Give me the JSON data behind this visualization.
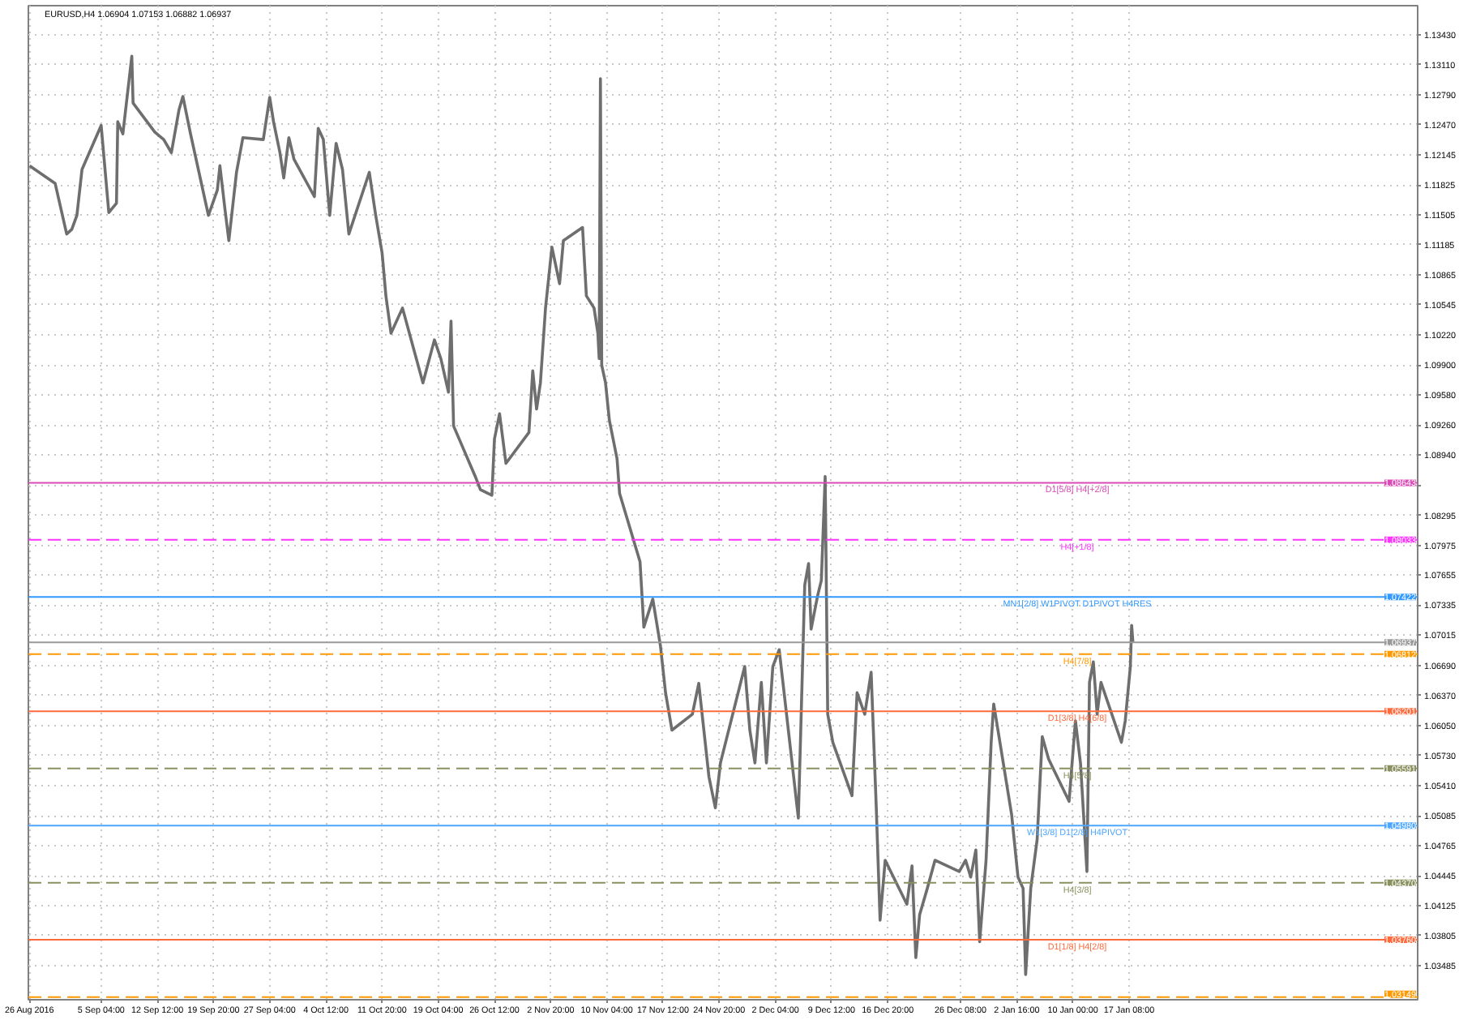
{
  "chart_data": {
    "type": "line",
    "title": "EURUSD,H4  1.06904 1.07153 1.06882 1.06937",
    "x": [
      "2016-08-26T20:00",
      "2016-08-30T04:00",
      "2016-08-31T16:00",
      "2016-09-01T08:00",
      "2016-09-02T00:00",
      "2016-09-02T16:00",
      "2016-09-05T04:00",
      "2016-09-06T04:00",
      "2016-09-07T04:00",
      "2016-09-07T08:00",
      "2016-09-08T00:00",
      "2016-09-09T04:00",
      "2016-09-09T08:00",
      "2016-09-12T04:00",
      "2016-09-13T08:00",
      "2016-09-14T08:00",
      "2016-09-15T08:00",
      "2016-09-15T20:00",
      "2016-09-16T20:00",
      "2016-09-19T04:00",
      "2016-09-20T08:00",
      "2016-09-20T16:00",
      "2016-09-21T08:00",
      "2016-09-21T20:00",
      "2016-09-22T20:00",
      "2016-09-23T16:00",
      "2016-09-26T08:00",
      "2016-09-27T04:00",
      "2016-09-27T16:00",
      "2016-09-28T12:00",
      "2016-09-29T00:00",
      "2016-09-29T16:00",
      "2016-09-30T08:00",
      "2016-10-03T00:00",
      "2016-10-03T12:00",
      "2016-10-04T04:00",
      "2016-10-05T00:00",
      "2016-10-05T20:00",
      "2016-10-06T16:00",
      "2016-10-07T12:00",
      "2016-10-10T04:00",
      "2016-10-11T00:00",
      "2016-10-11T20:00",
      "2016-10-12T08:00",
      "2016-10-13T00:00",
      "2016-10-14T12:00",
      "2016-10-17T04:00",
      "2016-10-18T16:00",
      "2016-10-19T12:00",
      "2016-10-20T12:00",
      "2016-10-20T20:00",
      "2016-10-21T04:00",
      "2016-10-24T00:00",
      "2016-10-24T16:00",
      "2016-10-26T04:00",
      "2016-10-26T12:00",
      "2016-10-27T04:00",
      "2016-10-28T00:00",
      "2016-10-31T00:00",
      "2016-10-31T12:00",
      "2016-11-01T00:00",
      "2016-11-01T12:00",
      "2016-11-02T04:00",
      "2016-11-03T00:00",
      "2016-11-04T00:00",
      "2016-11-04T12:00",
      "2016-11-07T00:00",
      "2016-11-07T12:00",
      "2016-11-08T12:00",
      "2016-11-09T00:00",
      "2016-11-09T04:00",
      "2016-11-09T08:00",
      "2016-11-09T12:00",
      "2016-11-10T00:00",
      "2016-11-10T12:00",
      "2016-11-11T12:00",
      "2016-11-11T20:00",
      "2016-11-14T12:00",
      "2016-11-15T00:00",
      "2016-11-16T04:00",
      "2016-11-17T04:00",
      "2016-11-17T20:00",
      "2016-11-18T16:00",
      "2016-11-21T08:00",
      "2016-11-22T04:00",
      "2016-11-23T12:00",
      "2016-11-24T08:00",
      "2016-11-25T00:00",
      "2016-11-28T04:00",
      "2016-11-28T20:00",
      "2016-11-29T12:00",
      "2016-11-30T08:00",
      "2016-12-01T00:00",
      "2016-12-01T20:00",
      "2016-12-02T16:00",
      "2016-12-05T04:00",
      "2016-12-06T00:00",
      "2016-12-06T12:00",
      "2016-12-06T20:00",
      "2016-12-07T16:00",
      "2016-12-08T04:00",
      "2016-12-08T16:00",
      "2016-12-09T00:00",
      "2016-12-09T16:00",
      "2016-12-12T04:00",
      "2016-12-12T20:00",
      "2016-12-13T20:00",
      "2016-12-14T16:00",
      "2016-12-15T08:00",
      "2016-12-15T20:00",
      "2016-12-16T12:00",
      "2016-12-19T08:00",
      "2016-12-20T00:00",
      "2016-12-20T12:00",
      "2016-12-21T00:00",
      "2016-12-22T00:00",
      "2016-12-23T00:00",
      "2016-12-26T04:00",
      "2016-12-27T00:00",
      "2016-12-27T16:00",
      "2016-12-28T08:00",
      "2016-12-28T20:00",
      "2016-12-29T16:00",
      "2016-12-30T08:00",
      "2016-12-30T16:00",
      "2017-01-02T00:00",
      "2017-01-02T20:00",
      "2017-01-03T12:00",
      "2017-01-03T20:00",
      "2017-01-04T12:00",
      "2017-01-05T08:00",
      "2017-01-06T00:00",
      "2017-01-06T20:00",
      "2017-01-09T12:00",
      "2017-01-10T08:00",
      "2017-01-11T00:00",
      "2017-01-11T20:00",
      "2017-01-12T04:00",
      "2017-01-12T16:00",
      "2017-01-13T04:00",
      "2017-01-13T16:00",
      "2017-01-16T08:00",
      "2017-01-16T20:00",
      "2017-01-17T12:00",
      "2017-01-17T16:00",
      "2017-01-17T20:00"
    ],
    "series": [
      {
        "color": "#6e6e6e",
        "values": [
          1.1203,
          1.1184,
          1.113,
          1.1135,
          1.115,
          1.1199,
          1.1246,
          1.1153,
          1.1163,
          1.125,
          1.1237,
          1.132,
          1.127,
          1.1239,
          1.1231,
          1.1217,
          1.1263,
          1.1277,
          1.1237,
          1.115,
          1.1177,
          1.1203,
          1.1156,
          1.1123,
          1.1196,
          1.1233,
          1.1231,
          1.1276,
          1.125,
          1.1217,
          1.119,
          1.1233,
          1.121,
          1.117,
          1.1243,
          1.1231,
          1.115,
          1.1227,
          1.1199,
          1.113,
          1.1196,
          1.115,
          1.111,
          1.1064,
          1.1024,
          1.1051,
          1.0971,
          1.1017,
          1.0997,
          1.0961,
          1.1037,
          1.0925,
          1.0871,
          1.0857,
          1.0851,
          1.0911,
          1.0938,
          1.0885,
          1.0918,
          1.0984,
          1.0943,
          1.0971,
          1.1051,
          1.1116,
          1.1077,
          1.1123,
          1.1137,
          1.1064,
          1.1051,
          1.1024,
          1.0997,
          1.1296,
          1.099,
          1.0971,
          1.0931,
          1.089,
          1.0853,
          1.078,
          1.071,
          1.074,
          1.069,
          1.064,
          1.06,
          1.0617,
          1.065,
          1.055,
          1.0517,
          1.0565,
          1.0668,
          1.06,
          1.0565,
          1.0651,
          1.0565,
          1.0668,
          1.0686,
          1.0506,
          1.0755,
          1.0778,
          1.0708,
          1.0743,
          1.076,
          1.0871,
          1.0617,
          1.0587,
          1.053,
          1.064,
          1.0617,
          1.0662,
          1.0518,
          1.0397,
          1.0461,
          1.0414,
          1.0455,
          1.0357,
          1.0403,
          1.0431,
          1.0461,
          1.0449,
          1.0461,
          1.0443,
          1.0472,
          1.0374,
          1.0461,
          1.0587,
          1.0628,
          1.051,
          1.0443,
          1.0431,
          1.0339,
          1.0431,
          1.0483,
          1.0593,
          1.0569,
          1.0524,
          1.061,
          1.0564,
          1.0449,
          1.0651,
          1.0673,
          1.0617,
          1.0651,
          1.0587,
          1.061,
          1.0668,
          1.0712,
          1.0694
        ]
      }
    ],
    "xlim": [
      "2016-08-26T16:00",
      "2017-02-24T00:00"
    ],
    "xticks": [
      {
        "value": "2016-08-26T20:00",
        "label": "26 Aug 2016"
      },
      {
        "value": "2016-09-05T04:00",
        "label": "5 Sep 04:00"
      },
      {
        "value": "2016-09-12T12:00",
        "label": "12 Sep 12:00"
      },
      {
        "value": "2016-09-19T20:00",
        "label": "19 Sep 20:00"
      },
      {
        "value": "2016-09-27T04:00",
        "label": "27 Sep 04:00"
      },
      {
        "value": "2016-10-04T12:00",
        "label": "4 Oct 12:00"
      },
      {
        "value": "2016-10-11T20:00",
        "label": "11 Oct 20:00"
      },
      {
        "value": "2016-10-19T04:00",
        "label": "19 Oct 04:00"
      },
      {
        "value": "2016-10-26T12:00",
        "label": "26 Oct 12:00"
      },
      {
        "value": "2016-11-02T20:00",
        "label": "2 Nov 20:00"
      },
      {
        "value": "2016-11-10T04:00",
        "label": "10 Nov 04:00"
      },
      {
        "value": "2016-11-17T12:00",
        "label": "17 Nov 12:00"
      },
      {
        "value": "2016-11-24T20:00",
        "label": "24 Nov 20:00"
      },
      {
        "value": "2016-12-02T04:00",
        "label": "2 Dec 04:00"
      },
      {
        "value": "2016-12-09T12:00",
        "label": "9 Dec 12:00"
      },
      {
        "value": "2016-12-16T20:00",
        "label": "16 Dec 20:00"
      },
      {
        "value": "2016-12-26T08:00",
        "label": "26 Dec 08:00"
      },
      {
        "value": "2017-01-02T16:00",
        "label": "2 Jan 16:00"
      },
      {
        "value": "2017-01-10T00:00",
        "label": "10 Jan 00:00"
      },
      {
        "value": "2017-01-17T08:00",
        "label": "17 Jan 08:00"
      }
    ],
    "ylim": [
      1.0312,
      1.1374
    ],
    "yticks": [
      {
        "value": 1.1343,
        "label": "1.13430"
      },
      {
        "value": 1.1311,
        "label": "1.13110"
      },
      {
        "value": 1.1279,
        "label": "1.12790"
      },
      {
        "value": 1.1247,
        "label": "1.12470"
      },
      {
        "value": 1.12145,
        "label": "1.12145"
      },
      {
        "value": 1.11825,
        "label": "1.11825"
      },
      {
        "value": 1.11505,
        "label": "1.11505"
      },
      {
        "value": 1.11185,
        "label": "1.11185"
      },
      {
        "value": 1.10865,
        "label": "1.10865"
      },
      {
        "value": 1.10545,
        "label": "1.10545"
      },
      {
        "value": 1.1022,
        "label": "1.10220"
      },
      {
        "value": 1.099,
        "label": "1.09900"
      },
      {
        "value": 1.0958,
        "label": "1.09580"
      },
      {
        "value": 1.0926,
        "label": "1.09260"
      },
      {
        "value": 1.0894,
        "label": "1.08940"
      },
      {
        "value": 1.08615,
        "label": null
      },
      {
        "value": 1.08295,
        "label": "1.08295"
      },
      {
        "value": 1.07975,
        "label": "1.07975"
      },
      {
        "value": 1.07655,
        "label": "1.07655"
      },
      {
        "value": 1.07335,
        "label": "1.07335"
      },
      {
        "value": 1.07015,
        "label": "1.07015"
      },
      {
        "value": 1.0669,
        "label": "1.06690"
      },
      {
        "value": 1.0637,
        "label": "1.06370"
      },
      {
        "value": 1.0605,
        "label": "1.06050"
      },
      {
        "value": 1.0573,
        "label": "1.05730"
      },
      {
        "value": 1.0541,
        "label": "1.05410"
      },
      {
        "value": 1.05085,
        "label": "1.05085"
      },
      {
        "value": 1.04765,
        "label": "1.04765"
      },
      {
        "value": 1.04445,
        "label": "1.04445"
      },
      {
        "value": 1.04125,
        "label": "1.04125"
      },
      {
        "value": 1.03805,
        "label": "1.03805"
      },
      {
        "value": 1.03485,
        "label": "1.03485"
      }
    ],
    "ref_lines": [
      {
        "axis": "y",
        "value": 1.08643,
        "label": "D1[5/8] H4[+2/8]",
        "color": "#d94bb5",
        "line_style": "solid"
      },
      {
        "axis": "y",
        "value": 1.08033,
        "label": "H4[+1/8]",
        "color": "#ff33ff",
        "line_style": "dashed"
      },
      {
        "axis": "y",
        "value": 1.07422,
        "label": "MN1[2/8] W1PIVOT D1PIVOT H4RES",
        "color": "#3399ff",
        "line_style": "solid"
      },
      {
        "axis": "y",
        "value": 1.06937,
        "color": "#9a9a9a",
        "line_style": "solid"
      },
      {
        "axis": "y",
        "value": 1.06812,
        "label": "H4[7/8]",
        "color": "#ff9900",
        "line_style": "dashed"
      },
      {
        "axis": "y",
        "value": 1.06201,
        "label": "D1[3/8] H4[6/8]",
        "color": "#ff6a3d",
        "line_style": "solid"
      },
      {
        "axis": "y",
        "value": 1.05591,
        "label": "H4[5/8]",
        "color": "#8a9060",
        "line_style": "dashed"
      },
      {
        "axis": "y",
        "value": 1.0498,
        "label": "W1[3/8] D1[2/8] H4PIVOT",
        "color": "#4da6ff",
        "line_style": "solid"
      },
      {
        "axis": "y",
        "value": 1.0437,
        "label": "H4[3/8]",
        "color": "#8a9060",
        "line_style": "dashed"
      },
      {
        "axis": "y",
        "value": 1.0376,
        "label": "D1[1/8] H4[2/8]",
        "color": "#ff6a3d",
        "line_style": "solid"
      },
      {
        "axis": "y",
        "value": 1.03149,
        "color": "#ff9900",
        "line_style": "dashed"
      }
    ],
    "annotations": [
      {
        "text": "1.08643",
        "y": 1.08643
      },
      {
        "text": "1.08033",
        "y": 1.08033
      },
      {
        "text": "1.07422",
        "y": 1.07422
      },
      {
        "text": "1.06937",
        "y": 1.06937
      },
      {
        "text": "1.06812",
        "y": 1.06812
      },
      {
        "text": "1.06201",
        "y": 1.06201
      },
      {
        "text": "1.05591",
        "y": 1.05591
      },
      {
        "text": "1.04980",
        "y": 1.0498
      },
      {
        "text": "1.04370",
        "y": 1.0437
      },
      {
        "text": "1.03760",
        "y": 1.0376
      },
      {
        "text": "1.03149",
        "y": 1.03149
      }
    ],
    "grid": true,
    "line_style": "solid"
  }
}
